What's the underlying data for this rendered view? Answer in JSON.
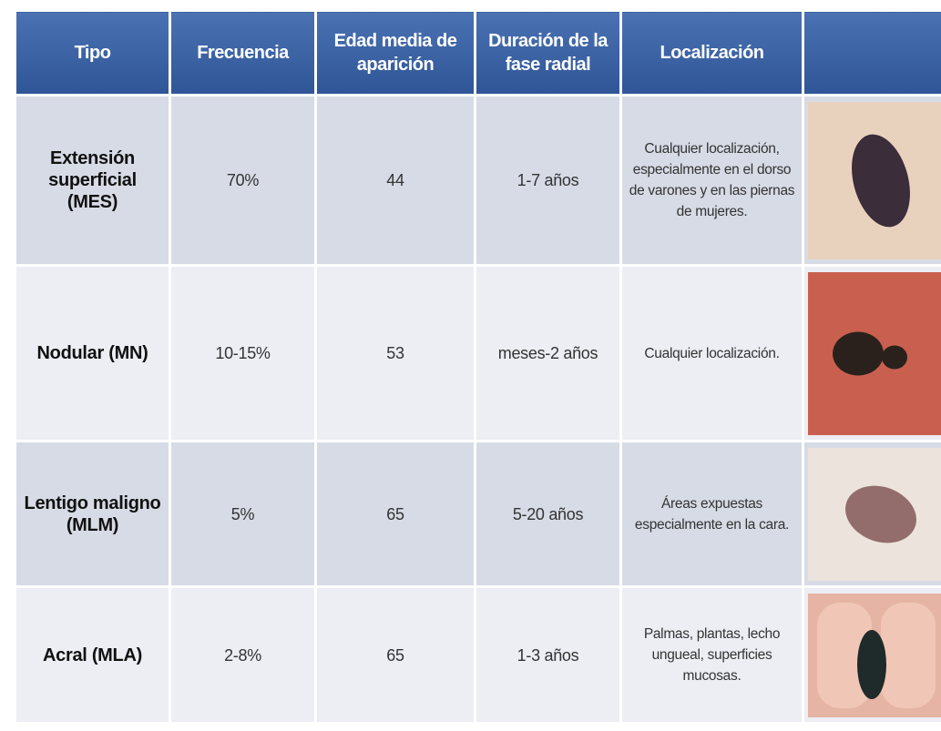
{
  "table": {
    "header": [
      "Tipo",
      "Frecuencia",
      "Edad media de aparición",
      "Duración de la fase radial",
      "Localización"
    ],
    "rows": [
      [
        "Extensión superficial (MES)",
        "70%",
        "44",
        "1-7 años",
        "Cualquier localización, especialmente en el dorso de varones y en las piernas de mujeres."
      ],
      [
        "Nodular (MN)",
        "10-15%",
        "53",
        "meses-2 años",
        "Cualquier localización."
      ],
      [
        "Lentigo maligno (MLM)",
        "5%",
        "65",
        "5-20 años",
        "Áreas expuestas especialmente en la cara."
      ],
      [
        "Acral  (MLA)",
        "2-8%",
        "65",
        "1-3 años",
        "Palmas, plantas, lecho ungueal, superficies mucosas."
      ]
    ]
  }
}
